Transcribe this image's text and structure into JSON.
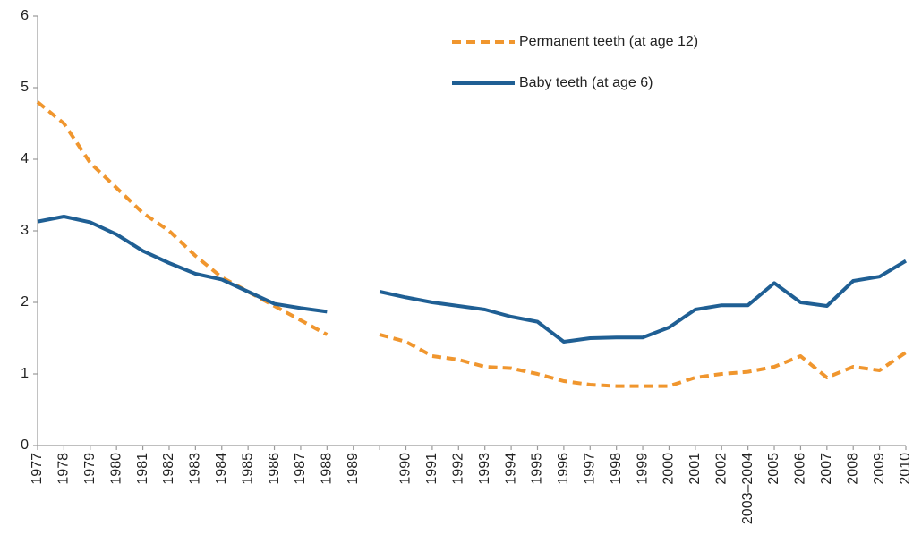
{
  "chart_data": {
    "type": "line",
    "categories": [
      "1977",
      "1978",
      "1979",
      "1980",
      "1981",
      "1982",
      "1983",
      "1984",
      "1985",
      "1986",
      "1987",
      "1988",
      "1989",
      null,
      "1990",
      "1991",
      "1992",
      "1993",
      "1994",
      "1995",
      "1996",
      "1997",
      "1998",
      "1999",
      "2000",
      "2001",
      "2002",
      "2003–2004",
      "2005",
      "2006",
      "2007",
      "2008",
      "2009",
      "2010"
    ],
    "series": [
      {
        "name": "Permanent teeth (at age 12)",
        "color": "#f0962e",
        "dashed": true,
        "values": [
          4.8,
          4.5,
          3.95,
          3.6,
          3.25,
          3.0,
          2.65,
          2.35,
          2.15,
          1.95,
          1.75,
          1.55,
          null,
          1.55,
          1.45,
          1.25,
          1.2,
          1.1,
          1.08,
          1.0,
          0.9,
          0.85,
          0.83,
          0.83,
          0.83,
          0.95,
          1.0,
          1.03,
          1.1,
          1.25,
          0.95,
          1.1,
          1.05,
          1.3
        ]
      },
      {
        "name": "Baby teeth (at age 6)",
        "color": "#1f5f94",
        "dashed": false,
        "values": [
          3.13,
          3.2,
          3.12,
          2.95,
          2.72,
          2.55,
          2.4,
          2.32,
          2.15,
          1.98,
          1.92,
          1.87,
          null,
          2.15,
          2.07,
          2.0,
          1.95,
          1.9,
          1.8,
          1.73,
          1.45,
          1.5,
          1.51,
          1.51,
          1.65,
          1.9,
          1.96,
          1.96,
          2.27,
          2.0,
          1.95,
          2.3,
          2.36,
          2.58
        ]
      }
    ],
    "ylim": [
      0,
      6
    ],
    "yticks": [
      0,
      1,
      2,
      3,
      4,
      5,
      6
    ],
    "grid": false,
    "legend": "top-right"
  }
}
